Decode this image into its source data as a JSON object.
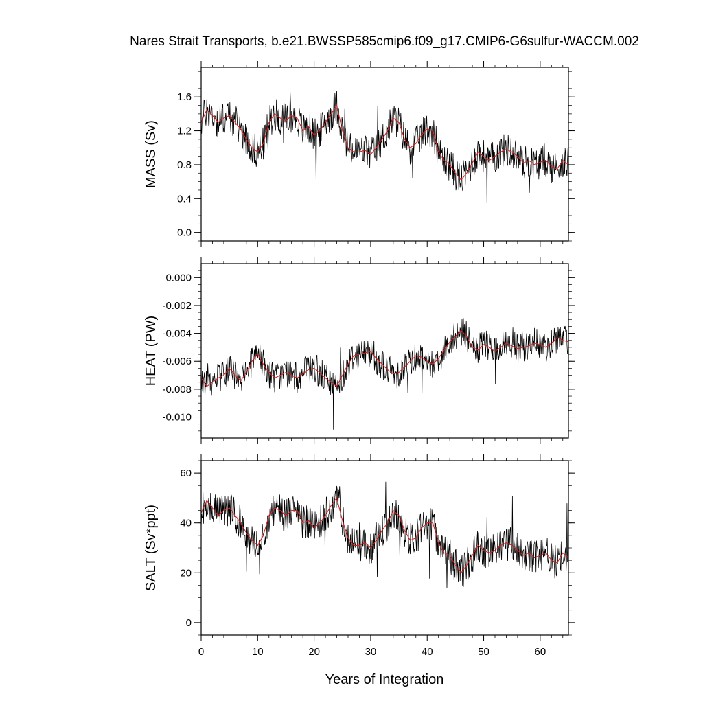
{
  "title": "Nares Strait Transports, b.e21.BWSSP585cmip6.f09_g17.CMIP6-G6sulfur-WACCM.002",
  "xlabel": "Years of Integration",
  "colors": {
    "raw": "#000000",
    "smooth": "#d62020",
    "axis": "#000000"
  },
  "chart_data": [
    {
      "type": "line",
      "ylabel": "MASS (Sv)",
      "xlim": [
        0,
        65
      ],
      "ylim": [
        -0.1,
        1.95
      ],
      "xticks": [
        0,
        10,
        20,
        30,
        40,
        50,
        60
      ],
      "yticks": [
        0.0,
        0.4,
        0.8,
        1.2,
        1.6
      ],
      "ytick_labels": [
        "0.0",
        "0.4",
        "0.8",
        "1.2",
        "1.6"
      ],
      "series": [
        {
          "role": "monthly",
          "spread": 0.2,
          "x": [
            0,
            1,
            2,
            3,
            4,
            5,
            6,
            7,
            8,
            9,
            10,
            11,
            12,
            13,
            14,
            15,
            16,
            17,
            18,
            19,
            20,
            21,
            22,
            23,
            24,
            25,
            26,
            27,
            28,
            29,
            30,
            31,
            32,
            33,
            34,
            35,
            36,
            37,
            38,
            39,
            40,
            41,
            42,
            43,
            44,
            45,
            46,
            47,
            48,
            49,
            50,
            51,
            52,
            53,
            54,
            55,
            56,
            57,
            58,
            59,
            60,
            61,
            62,
            63,
            64,
            65
          ],
          "y": [
            1.3,
            1.45,
            1.38,
            1.3,
            1.35,
            1.38,
            1.3,
            1.22,
            1.1,
            1.0,
            0.95,
            1.05,
            1.3,
            1.4,
            1.35,
            1.32,
            1.38,
            1.35,
            1.2,
            1.25,
            1.15,
            1.2,
            1.3,
            1.4,
            1.5,
            1.2,
            1.0,
            0.95,
            0.95,
            0.97,
            0.92,
            1.0,
            1.1,
            1.2,
            1.35,
            1.3,
            1.1,
            1.0,
            1.05,
            1.15,
            1.22,
            1.2,
            0.95,
            0.85,
            0.8,
            0.7,
            0.62,
            0.7,
            0.82,
            0.95,
            0.9,
            0.85,
            0.9,
            0.95,
            0.98,
            0.95,
            0.9,
            0.82,
            0.85,
            0.8,
            0.83,
            0.85,
            0.78,
            0.75,
            0.85,
            0.8
          ]
        },
        {
          "role": "smoothed",
          "x": [
            0,
            1,
            2,
            3,
            4,
            5,
            6,
            7,
            8,
            9,
            10,
            11,
            12,
            13,
            14,
            15,
            16,
            17,
            18,
            19,
            20,
            21,
            22,
            23,
            24,
            25,
            26,
            27,
            28,
            29,
            30,
            31,
            32,
            33,
            34,
            35,
            36,
            37,
            38,
            39,
            40,
            41,
            42,
            43,
            44,
            45,
            46,
            47,
            48,
            49,
            50,
            51,
            52,
            53,
            54,
            55,
            56,
            57,
            58,
            59,
            60,
            61,
            62,
            63,
            64,
            65
          ],
          "y": [
            1.3,
            1.45,
            1.38,
            1.3,
            1.35,
            1.38,
            1.3,
            1.22,
            1.1,
            1.0,
            0.95,
            1.05,
            1.3,
            1.4,
            1.35,
            1.32,
            1.38,
            1.35,
            1.2,
            1.25,
            1.15,
            1.2,
            1.3,
            1.4,
            1.5,
            1.2,
            1.0,
            0.95,
            0.95,
            0.97,
            0.92,
            1.0,
            1.1,
            1.2,
            1.35,
            1.3,
            1.1,
            1.0,
            1.05,
            1.15,
            1.22,
            1.2,
            0.95,
            0.85,
            0.8,
            0.7,
            0.62,
            0.7,
            0.82,
            0.95,
            0.9,
            0.85,
            0.9,
            0.95,
            0.98,
            0.95,
            0.9,
            0.82,
            0.85,
            0.8,
            0.83,
            0.85,
            0.78,
            0.75,
            0.85,
            0.8
          ]
        }
      ]
    },
    {
      "type": "line",
      "ylabel": "HEAT (PW)",
      "xlim": [
        0,
        65
      ],
      "ylim": [
        -0.0115,
        0.001
      ],
      "xticks": [
        0,
        10,
        20,
        30,
        40,
        50,
        60
      ],
      "yticks": [
        -0.01,
        -0.008,
        -0.006,
        -0.004,
        -0.002,
        0.0
      ],
      "ytick_labels": [
        "-0.010",
        "-0.008",
        "-0.006",
        "-0.004",
        "-0.002",
        "0.000"
      ],
      "series": [
        {
          "role": "monthly",
          "spread": 0.0011,
          "x": [
            0,
            1,
            2,
            3,
            4,
            5,
            6,
            7,
            8,
            9,
            10,
            11,
            12,
            13,
            14,
            15,
            16,
            17,
            18,
            19,
            20,
            21,
            22,
            23,
            24,
            25,
            26,
            27,
            28,
            29,
            30,
            31,
            32,
            33,
            34,
            35,
            36,
            37,
            38,
            39,
            40,
            41,
            42,
            43,
            44,
            45,
            46,
            47,
            48,
            49,
            50,
            51,
            52,
            53,
            54,
            55,
            56,
            57,
            58,
            59,
            60,
            61,
            62,
            63,
            64,
            65
          ],
          "y": [
            -0.0072,
            -0.0078,
            -0.0075,
            -0.0072,
            -0.007,
            -0.0065,
            -0.007,
            -0.0074,
            -0.0068,
            -0.006,
            -0.0055,
            -0.0062,
            -0.0068,
            -0.0072,
            -0.007,
            -0.0068,
            -0.007,
            -0.0072,
            -0.0069,
            -0.0066,
            -0.0065,
            -0.0068,
            -0.0072,
            -0.0075,
            -0.0078,
            -0.007,
            -0.0062,
            -0.0056,
            -0.0055,
            -0.0054,
            -0.0053,
            -0.0058,
            -0.0062,
            -0.0066,
            -0.0069,
            -0.0068,
            -0.0064,
            -0.006,
            -0.0056,
            -0.0057,
            -0.006,
            -0.0062,
            -0.0058,
            -0.0052,
            -0.0046,
            -0.0042,
            -0.0038,
            -0.0042,
            -0.005,
            -0.0052,
            -0.0048,
            -0.005,
            -0.0053,
            -0.005,
            -0.0047,
            -0.0049,
            -0.0051,
            -0.005,
            -0.0049,
            -0.0047,
            -0.0048,
            -0.005,
            -0.0047,
            -0.0043,
            -0.0045,
            -0.0046
          ]
        },
        {
          "role": "smoothed",
          "x": [
            0,
            1,
            2,
            3,
            4,
            5,
            6,
            7,
            8,
            9,
            10,
            11,
            12,
            13,
            14,
            15,
            16,
            17,
            18,
            19,
            20,
            21,
            22,
            23,
            24,
            25,
            26,
            27,
            28,
            29,
            30,
            31,
            32,
            33,
            34,
            35,
            36,
            37,
            38,
            39,
            40,
            41,
            42,
            43,
            44,
            45,
            46,
            47,
            48,
            49,
            50,
            51,
            52,
            53,
            54,
            55,
            56,
            57,
            58,
            59,
            60,
            61,
            62,
            63,
            64,
            65
          ],
          "y": [
            -0.0072,
            -0.0078,
            -0.0075,
            -0.0072,
            -0.007,
            -0.0065,
            -0.007,
            -0.0074,
            -0.0068,
            -0.006,
            -0.0055,
            -0.0062,
            -0.0068,
            -0.0072,
            -0.007,
            -0.0068,
            -0.007,
            -0.0072,
            -0.0069,
            -0.0066,
            -0.0065,
            -0.0068,
            -0.0072,
            -0.0075,
            -0.0078,
            -0.007,
            -0.0062,
            -0.0056,
            -0.0055,
            -0.0054,
            -0.0053,
            -0.0058,
            -0.0062,
            -0.0066,
            -0.0069,
            -0.0068,
            -0.0064,
            -0.006,
            -0.0056,
            -0.0057,
            -0.006,
            -0.0062,
            -0.0058,
            -0.0052,
            -0.0046,
            -0.0042,
            -0.0038,
            -0.0042,
            -0.005,
            -0.0052,
            -0.0048,
            -0.005,
            -0.0053,
            -0.005,
            -0.0047,
            -0.0049,
            -0.0051,
            -0.005,
            -0.0049,
            -0.0047,
            -0.0048,
            -0.005,
            -0.0047,
            -0.0043,
            -0.0045,
            -0.0046
          ]
        }
      ]
    },
    {
      "type": "line",
      "ylabel": "SALT (Sv*ppt)",
      "xlim": [
        0,
        65
      ],
      "ylim": [
        -5,
        65
      ],
      "xticks": [
        0,
        10,
        20,
        30,
        40,
        50,
        60
      ],
      "yticks": [
        0,
        20,
        40,
        60
      ],
      "ytick_labels": [
        "0",
        "20",
        "40",
        "60"
      ],
      "series": [
        {
          "role": "monthly",
          "spread": 7,
          "x": [
            0,
            1,
            2,
            3,
            4,
            5,
            6,
            7,
            8,
            9,
            10,
            11,
            12,
            13,
            14,
            15,
            16,
            17,
            18,
            19,
            20,
            21,
            22,
            23,
            24,
            25,
            26,
            27,
            28,
            29,
            30,
            31,
            32,
            33,
            34,
            35,
            36,
            37,
            38,
            39,
            40,
            41,
            42,
            43,
            44,
            45,
            46,
            47,
            48,
            49,
            50,
            51,
            52,
            53,
            54,
            55,
            56,
            57,
            58,
            59,
            60,
            61,
            62,
            63,
            64,
            65
          ],
          "y": [
            44,
            49,
            46,
            43,
            45,
            46,
            43,
            40,
            36,
            33,
            31,
            35,
            43,
            46,
            45,
            43,
            45,
            45,
            40,
            41,
            38,
            40,
            43,
            47,
            50,
            41,
            34,
            31,
            31,
            32,
            30,
            33,
            37,
            40,
            45,
            43,
            37,
            33,
            34,
            38,
            40,
            40,
            32,
            28,
            27,
            23,
            20,
            23,
            27,
            31,
            29,
            28,
            29,
            31,
            32,
            31,
            29,
            27,
            28,
            26,
            27,
            28,
            25,
            24,
            28,
            26
          ]
        },
        {
          "role": "smoothed",
          "x": [
            0,
            1,
            2,
            3,
            4,
            5,
            6,
            7,
            8,
            9,
            10,
            11,
            12,
            13,
            14,
            15,
            16,
            17,
            18,
            19,
            20,
            21,
            22,
            23,
            24,
            25,
            26,
            27,
            28,
            29,
            30,
            31,
            32,
            33,
            34,
            35,
            36,
            37,
            38,
            39,
            40,
            41,
            42,
            43,
            44,
            45,
            46,
            47,
            48,
            49,
            50,
            51,
            52,
            53,
            54,
            55,
            56,
            57,
            58,
            59,
            60,
            61,
            62,
            63,
            64,
            65
          ],
          "y": [
            44,
            49,
            46,
            43,
            45,
            46,
            43,
            40,
            36,
            33,
            31,
            35,
            43,
            46,
            45,
            43,
            45,
            45,
            40,
            41,
            38,
            40,
            43,
            47,
            50,
            41,
            34,
            31,
            31,
            32,
            30,
            33,
            37,
            40,
            45,
            43,
            37,
            33,
            34,
            38,
            40,
            40,
            32,
            28,
            27,
            23,
            20,
            23,
            27,
            31,
            29,
            28,
            29,
            31,
            32,
            31,
            29,
            27,
            28,
            26,
            27,
            28,
            25,
            24,
            28,
            26
          ]
        }
      ]
    }
  ]
}
